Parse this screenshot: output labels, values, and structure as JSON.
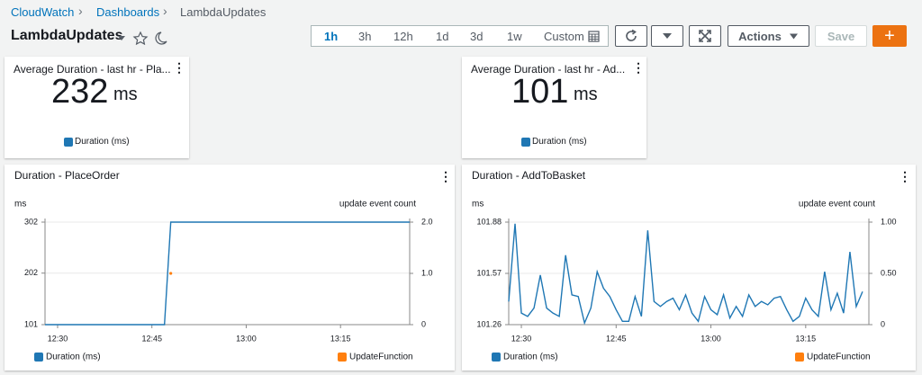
{
  "breadcrumb": [
    "CloudWatch",
    "Dashboards",
    "LambdaUpdates"
  ],
  "header": {
    "title": "LambdaUpdates",
    "time_ranges": [
      "1h",
      "3h",
      "12h",
      "1d",
      "3d",
      "1w",
      "Custom"
    ],
    "actions": "Actions",
    "save": "Save",
    "add": "+"
  },
  "widgets": [
    {
      "title": "Average Duration - last hr - Pla...",
      "value": 232,
      "unit": "ms",
      "legend": "Duration (ms)",
      "color": "#1f77b4"
    },
    {
      "title": "Average Duration - last hr - Ad...",
      "value": 101,
      "unit": "ms",
      "legend": "Duration (ms)",
      "color": "#1f77b4"
    }
  ],
  "chart_data": [
    {
      "type": "line",
      "title": "Duration - PlaceOrder",
      "y_label": "ms",
      "y2_label": "update event count",
      "x": [
        "12:28",
        "12:29",
        "12:30",
        "12:31",
        "12:32",
        "12:33",
        "12:34",
        "12:35",
        "12:36",
        "12:37",
        "12:38",
        "12:39",
        "12:40",
        "12:41",
        "12:42",
        "12:43",
        "12:44",
        "12:45",
        "12:46",
        "12:47",
        "12:48",
        "12:49",
        "12:50",
        "12:51",
        "12:52",
        "12:53",
        "12:54",
        "12:55",
        "12:56",
        "12:57",
        "12:58",
        "12:59",
        "13:00",
        "13:01",
        "13:02",
        "13:03",
        "13:04",
        "13:05",
        "13:06",
        "13:07",
        "13:08",
        "13:09",
        "13:10",
        "13:11",
        "13:12",
        "13:13",
        "13:14",
        "13:15",
        "13:16",
        "13:17",
        "13:18",
        "13:19",
        "13:20",
        "13:21",
        "13:22",
        "13:23",
        "13:24",
        "13:25",
        "13:26"
      ],
      "xlim": [
        "12:28",
        "13:26"
      ],
      "xticks": [
        "12:30",
        "12:45",
        "13:00",
        "13:15"
      ],
      "ylim": [
        101,
        302
      ],
      "yticks": [
        101,
        202,
        302
      ],
      "y2lim": [
        0,
        2
      ],
      "y2ticks": [
        0,
        {
          "value": 1,
          "label": "1.0"
        },
        {
          "value": 2,
          "label": "2.0"
        }
      ],
      "grid": true,
      "series": [
        {
          "name": "Duration (ms)",
          "color": "#1f77b4",
          "values": [
            101,
            101,
            101,
            101,
            101,
            101,
            101,
            101,
            101,
            101,
            101,
            101,
            101,
            101,
            101,
            101,
            101,
            101,
            101,
            101,
            302,
            302,
            302,
            302,
            302,
            302,
            302,
            302,
            302,
            302,
            302,
            302,
            302,
            302,
            302,
            302,
            302,
            302,
            302,
            302,
            302,
            302,
            302,
            302,
            302,
            302,
            302,
            302,
            302,
            302,
            302,
            302,
            302,
            302,
            302,
            302,
            302,
            302,
            302
          ]
        },
        {
          "name": "UpdateFunction",
          "color": "#ff7f0e",
          "axis": "y2",
          "values": [
            null,
            null,
            null,
            null,
            null,
            null,
            null,
            null,
            null,
            null,
            null,
            null,
            null,
            null,
            null,
            null,
            null,
            null,
            null,
            null,
            1,
            null,
            null,
            null,
            null,
            null,
            null,
            null,
            null,
            null,
            null,
            null,
            null,
            null,
            null,
            null,
            null,
            null,
            null,
            null,
            null,
            null,
            null,
            null,
            null,
            null,
            null,
            null,
            null,
            null,
            null,
            null,
            null,
            null,
            null,
            null,
            null,
            null,
            null
          ]
        }
      ]
    },
    {
      "type": "line",
      "title": "Duration - AddToBasket",
      "y_label": "ms",
      "y2_label": "update event count",
      "x": [
        "12:28",
        "12:29",
        "12:30",
        "12:31",
        "12:32",
        "12:33",
        "12:34",
        "12:35",
        "12:36",
        "12:37",
        "12:38",
        "12:39",
        "12:40",
        "12:41",
        "12:42",
        "12:43",
        "12:44",
        "12:45",
        "12:46",
        "12:47",
        "12:48",
        "12:49",
        "12:50",
        "12:51",
        "12:52",
        "12:53",
        "12:54",
        "12:55",
        "12:56",
        "12:57",
        "12:58",
        "12:59",
        "13:00",
        "13:01",
        "13:02",
        "13:03",
        "13:04",
        "13:05",
        "13:06",
        "13:07",
        "13:08",
        "13:09",
        "13:10",
        "13:11",
        "13:12",
        "13:13",
        "13:14",
        "13:15",
        "13:16",
        "13:17",
        "13:18",
        "13:19",
        "13:20",
        "13:21",
        "13:22",
        "13:23",
        "13:24"
      ],
      "xlim": [
        "12:28",
        "13:25"
      ],
      "xticks": [
        "12:30",
        "12:45",
        "13:00",
        "13:15"
      ],
      "ylim": [
        101.26,
        101.88
      ],
      "yticks": [
        101.26,
        101.57,
        101.88
      ],
      "y2lim": [
        0,
        1
      ],
      "y2ticks": [
        0,
        {
          "value": 0.5,
          "label": "0.50"
        },
        {
          "value": 1,
          "label": "1.00"
        }
      ],
      "grid": true,
      "series": [
        {
          "name": "Duration (ms)",
          "color": "#1f77b4",
          "values": [
            101.4,
            101.87,
            101.33,
            101.31,
            101.36,
            101.56,
            101.36,
            101.33,
            101.31,
            101.68,
            101.44,
            101.43,
            101.27,
            101.36,
            101.58,
            101.48,
            101.43,
            101.35,
            101.28,
            101.28,
            101.43,
            101.31,
            101.83,
            101.4,
            101.37,
            101.4,
            101.42,
            101.35,
            101.44,
            101.33,
            101.28,
            101.43,
            101.35,
            101.32,
            101.44,
            101.3,
            101.37,
            101.31,
            101.44,
            101.37,
            101.4,
            101.38,
            101.42,
            101.43,
            101.35,
            101.28,
            101.31,
            101.42,
            101.35,
            101.31,
            101.58,
            101.35,
            101.45,
            101.33,
            101.7,
            101.37,
            101.46
          ]
        },
        {
          "name": "UpdateFunction",
          "color": "#ff7f0e",
          "axis": "y2",
          "values": [
            null,
            null,
            null,
            null,
            null,
            null,
            null,
            null,
            null,
            null,
            null,
            null,
            null,
            null,
            null,
            null,
            null,
            null,
            null,
            null,
            null,
            null,
            null,
            null,
            null,
            null,
            null,
            null,
            null,
            null,
            null,
            null,
            null,
            null,
            null,
            null,
            null,
            null,
            null,
            null,
            null,
            null,
            null,
            null,
            null,
            null,
            null,
            null,
            null,
            null,
            null,
            null,
            null,
            null,
            null,
            null,
            null
          ]
        }
      ]
    }
  ]
}
